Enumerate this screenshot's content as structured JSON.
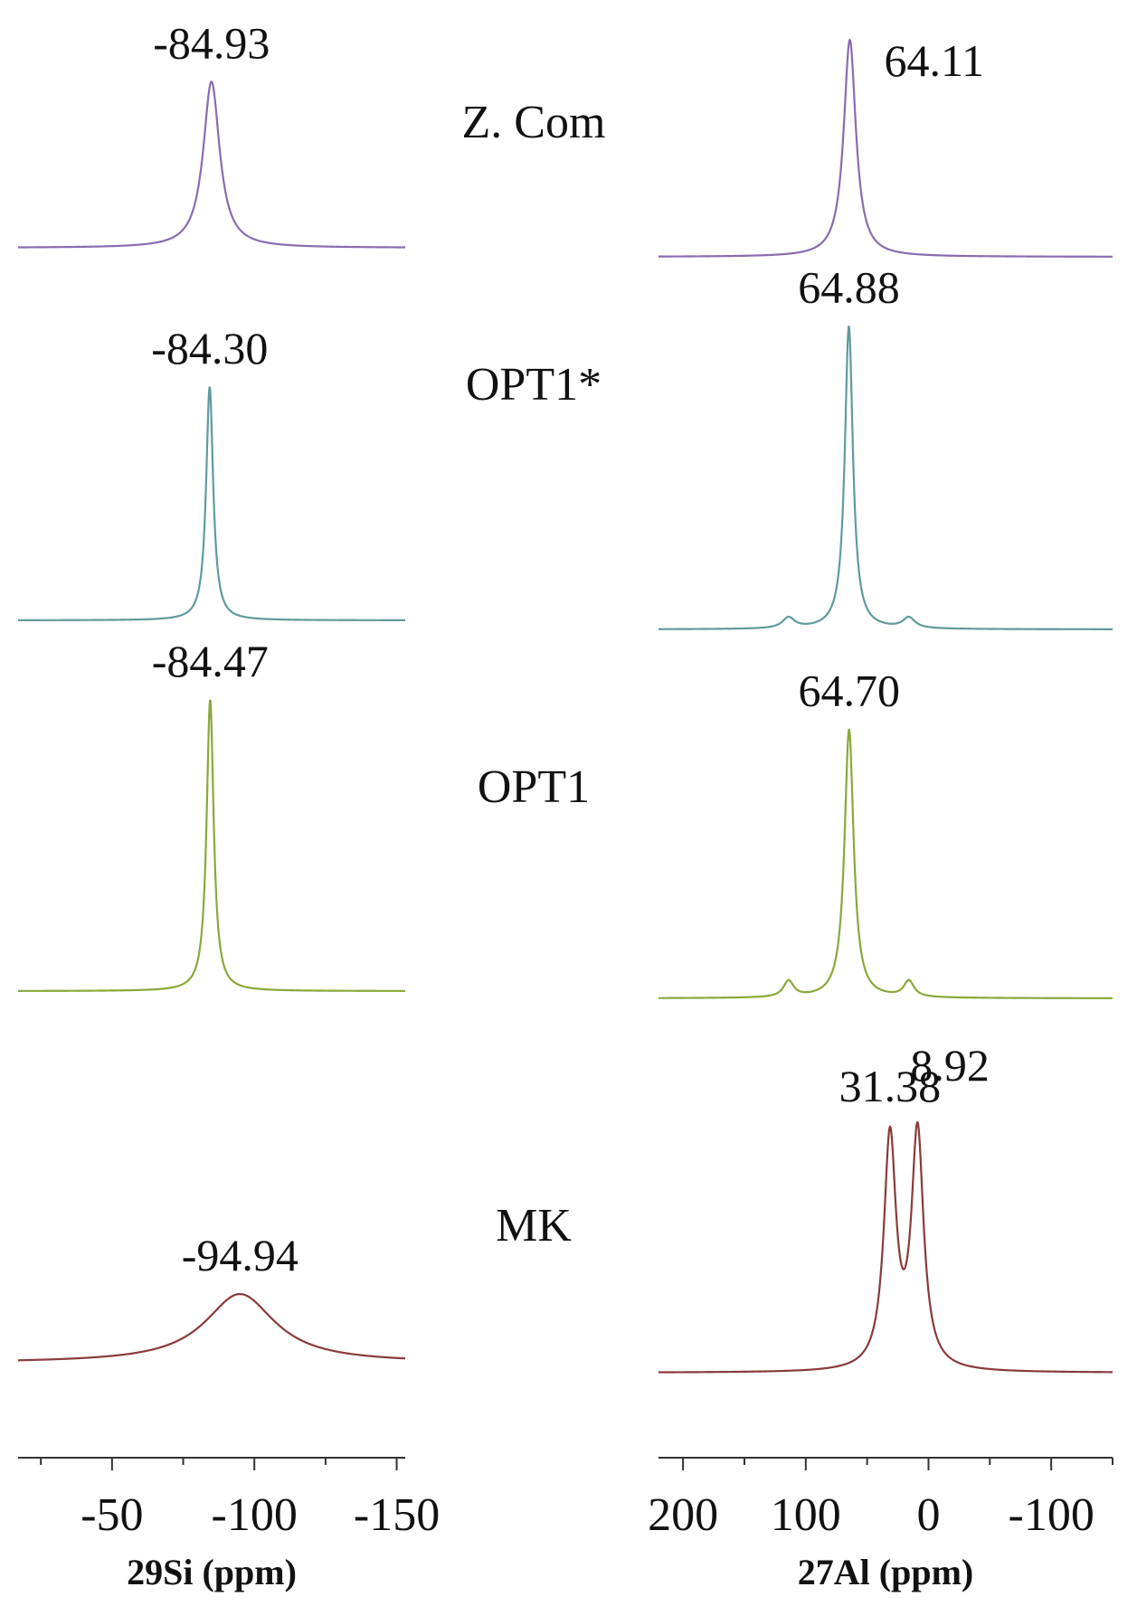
{
  "chart_data": {
    "type": "line",
    "panels": [
      {
        "id": "si",
        "xlabel": "29Si (ppm)",
        "xlim": [
          -17,
          -153
        ],
        "ticks": [
          -50,
          -100,
          -150
        ],
        "tick_labels": [
          "-50",
          "-100",
          "-150"
        ]
      },
      {
        "id": "al",
        "xlabel": "27Al (ppm)",
        "xlim": [
          220,
          -150
        ],
        "ticks": [
          200,
          100,
          0,
          -100
        ],
        "tick_labels": [
          "200",
          "100",
          "0",
          "-100"
        ]
      }
    ],
    "samples": [
      {
        "name": "Z. Com",
        "color": "#8a6bb0",
        "si": {
          "peaks": [
            {
              "center": -84.93,
              "height": 0.35,
              "width": 3.5,
              "label": "-84.93"
            }
          ]
        },
        "al": {
          "peaks": [
            {
              "center": 64.11,
              "height": 1.0,
              "width": 6,
              "label": "64.11"
            }
          ]
        }
      },
      {
        "name": "OPT1*",
        "color": "#5f9a9e",
        "si": {
          "peaks": [
            {
              "center": -84.3,
              "height": 1.0,
              "width": 1.5,
              "label": "-84.30"
            }
          ]
        },
        "al": {
          "peaks": [
            {
              "center": 64.88,
              "height": 1.0,
              "width": 4,
              "label": "64.88"
            },
            {
              "center": 114,
              "height": 0.035,
              "width": 6,
              "label": ""
            },
            {
              "center": 16,
              "height": 0.035,
              "width": 6,
              "label": ""
            }
          ]
        }
      },
      {
        "name": "OPT1",
        "color": "#8aa83a",
        "si": {
          "peaks": [
            {
              "center": -84.47,
              "height": 1.0,
              "width": 1.5,
              "label": "-84.47"
            }
          ]
        },
        "al": {
          "peaks": [
            {
              "center": 64.7,
              "height": 1.0,
              "width": 4.5,
              "label": "64.70"
            },
            {
              "center": 114,
              "height": 0.06,
              "width": 5,
              "label": ""
            },
            {
              "center": 16,
              "height": 0.06,
              "width": 5,
              "label": ""
            }
          ]
        }
      },
      {
        "name": "MK",
        "color": "#8a3a3a",
        "si": {
          "peaks": [
            {
              "center": -94.94,
              "height": 0.4,
              "width": 15,
              "label": "-94.94"
            }
          ]
        },
        "al": {
          "peaks": [
            {
              "center": 31.38,
              "height": 0.98,
              "width": 6,
              "label": "31.38"
            },
            {
              "center": 8.92,
              "height": 1.0,
              "width": 6,
              "label": "8.92"
            }
          ]
        }
      }
    ]
  }
}
